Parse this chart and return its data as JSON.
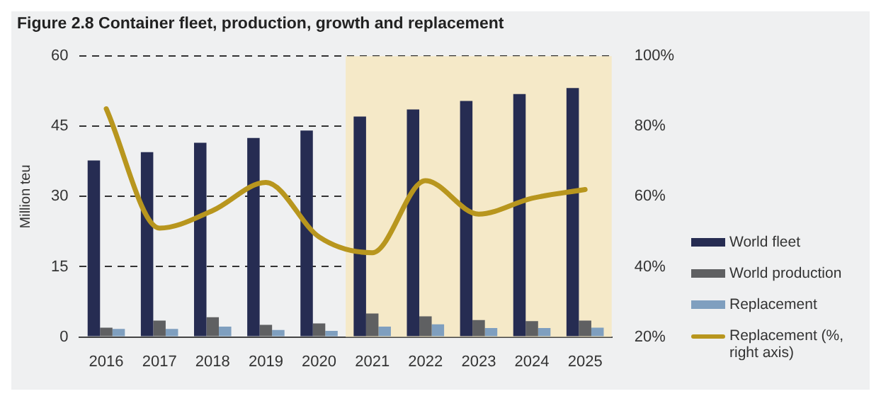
{
  "chart_data": {
    "type": "bar",
    "title": "Figure 2.8  Container fleet, production, growth and replacement",
    "ylabel": "Million teu",
    "categories": [
      "2016",
      "2017",
      "2018",
      "2019",
      "2020",
      "2021",
      "2022",
      "2023",
      "2024",
      "2025"
    ],
    "series": [
      {
        "name": "World fleet",
        "color": "#262c52",
        "values": [
          37.7,
          39.5,
          41.5,
          42.5,
          44.1,
          47.1,
          48.6,
          50.4,
          51.9,
          53.2
        ]
      },
      {
        "name": "World production",
        "color": "#5f6062",
        "values": [
          2.0,
          3.5,
          4.2,
          2.6,
          2.9,
          5.0,
          4.4,
          3.6,
          3.4,
          3.5
        ]
      },
      {
        "name": "Replacement",
        "color": "#7f9fbf",
        "values": [
          1.7,
          1.7,
          2.2,
          1.5,
          1.3,
          2.2,
          2.7,
          1.9,
          1.9,
          2.0
        ]
      },
      {
        "name": "Replacement (%, right axis)",
        "type": "line",
        "axis": "y2",
        "color": "#b8961e",
        "values": [
          85,
          51,
          56,
          64,
          48.5,
          44,
          64.5,
          55,
          59.5,
          62
        ]
      }
    ],
    "ylim": [
      0,
      60
    ],
    "yticks": [
      0,
      15,
      30,
      45,
      60
    ],
    "y2lim": [
      20,
      100
    ],
    "y2ticks": [
      {
        "value": 20,
        "label": "20%"
      },
      {
        "value": 40,
        "label": "40%"
      },
      {
        "value": 60,
        "label": "60%"
      },
      {
        "value": 80,
        "label": "80%"
      },
      {
        "value": 100,
        "label": "100%"
      }
    ],
    "bands": [
      {
        "axis": "x",
        "from": "2021",
        "to": "2025",
        "color": "#f5e9c8"
      }
    ],
    "grid": "y",
    "line_style": "solid",
    "marker": "none",
    "legend": "right"
  }
}
